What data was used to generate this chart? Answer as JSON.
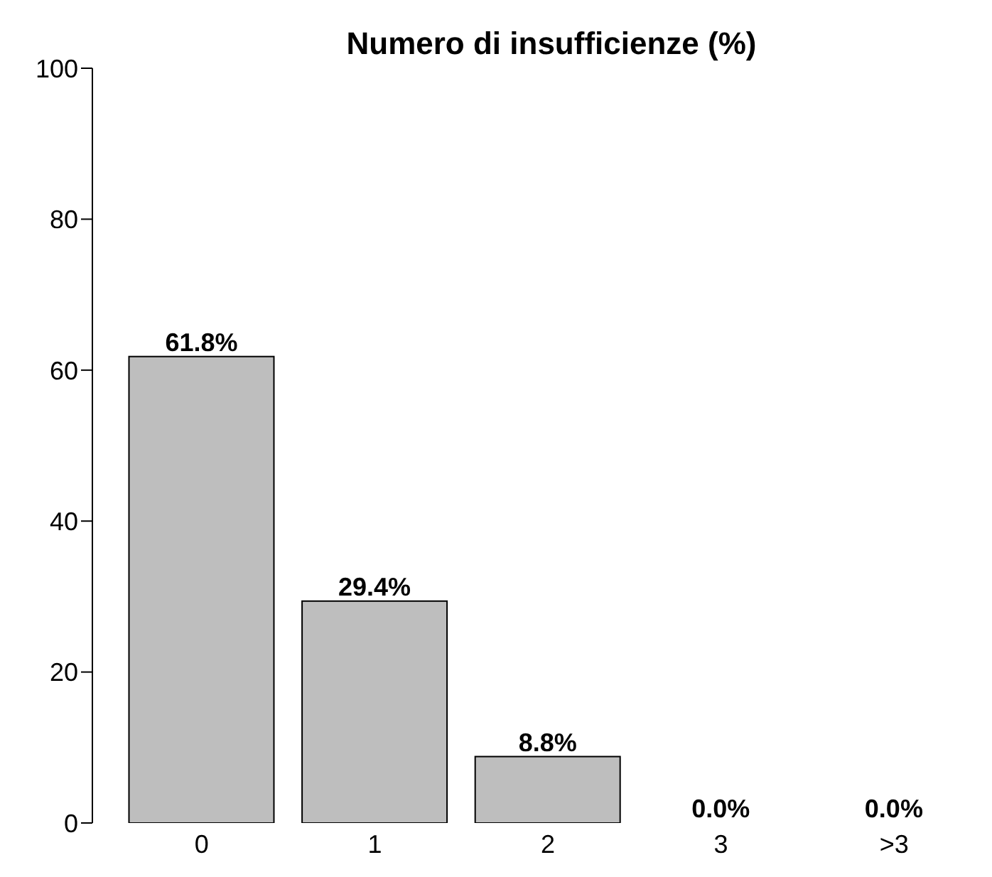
{
  "chart_data": {
    "type": "bar",
    "title": "Numero di insufficienze (%)",
    "categories": [
      "0",
      "1",
      "2",
      "3",
      ">3"
    ],
    "values": [
      61.8,
      29.4,
      8.8,
      0.0,
      0.0
    ],
    "value_labels": [
      "61.8%",
      "29.4%",
      "8.8%",
      "0.0%",
      "0.0%"
    ],
    "color": "#bebebe",
    "ylim": [
      0,
      100
    ],
    "yticks": [
      0,
      20,
      40,
      60,
      80,
      100
    ],
    "grid": false,
    "legend": false
  }
}
